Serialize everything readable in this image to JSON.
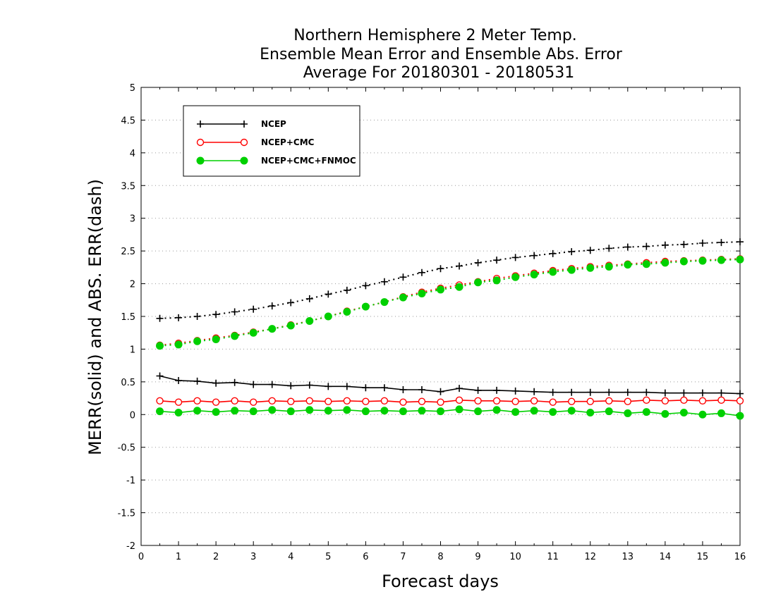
{
  "chart_data": {
    "type": "line",
    "title_lines": [
      "Northern Hemisphere 2 Meter Temp.",
      "Ensemble Mean Error and Ensemble Abs. Error",
      "Average For 20180301 - 20180531"
    ],
    "xlabel": "Forecast days",
    "ylabel": "MERR(solid) and ABS. ERR(dash)",
    "xlim": [
      0,
      16
    ],
    "ylim": [
      -2,
      5
    ],
    "xticks": [
      "0",
      "1",
      "2",
      "3",
      "4",
      "5",
      "6",
      "7",
      "8",
      "9",
      "10",
      "11",
      "12",
      "13",
      "14",
      "15",
      "16"
    ],
    "yticks": [
      "-2",
      "-1.5",
      "-1",
      "-0.5",
      "0",
      "0.5",
      "1",
      "1.5",
      "2",
      "2.5",
      "3",
      "3.5",
      "4",
      "4.5",
      "5"
    ],
    "grid": "horizontal-dotted",
    "legend_position": "top-left",
    "x": [
      0.5,
      1,
      1.5,
      2,
      2.5,
      3,
      3.5,
      4,
      4.5,
      5,
      5.5,
      6,
      6.5,
      7,
      7.5,
      8,
      8.5,
      9,
      9.5,
      10,
      10.5,
      11,
      11.5,
      12,
      12.5,
      13,
      13.5,
      14,
      14.5,
      15,
      15.5,
      16
    ],
    "series": [
      {
        "name": "NCEP",
        "color": "#000000",
        "marker": "plus",
        "abs_err": [
          1.47,
          1.48,
          1.5,
          1.53,
          1.57,
          1.61,
          1.66,
          1.71,
          1.77,
          1.84,
          1.9,
          1.97,
          2.03,
          2.1,
          2.17,
          2.23,
          2.27,
          2.32,
          2.36,
          2.4,
          2.43,
          2.46,
          2.49,
          2.51,
          2.54,
          2.56,
          2.57,
          2.59,
          2.6,
          2.62,
          2.63,
          2.64
        ],
        "mean_err": [
          0.59,
          0.52,
          0.51,
          0.48,
          0.49,
          0.46,
          0.46,
          0.44,
          0.45,
          0.43,
          0.43,
          0.41,
          0.41,
          0.38,
          0.38,
          0.35,
          0.4,
          0.37,
          0.37,
          0.36,
          0.35,
          0.34,
          0.34,
          0.34,
          0.34,
          0.34,
          0.34,
          0.33,
          0.33,
          0.33,
          0.33,
          0.32
        ]
      },
      {
        "name": "NCEP+CMC",
        "color": "#ff0000",
        "marker": "open-circle",
        "abs_err": [
          1.06,
          1.09,
          1.13,
          1.17,
          1.21,
          1.26,
          1.31,
          1.37,
          1.43,
          1.5,
          1.58,
          1.65,
          1.72,
          1.8,
          1.87,
          1.93,
          1.98,
          2.03,
          2.08,
          2.12,
          2.16,
          2.2,
          2.23,
          2.26,
          2.28,
          2.3,
          2.32,
          2.34,
          2.35,
          2.36,
          2.37,
          2.38
        ],
        "mean_err": [
          0.21,
          0.19,
          0.21,
          0.19,
          0.21,
          0.19,
          0.21,
          0.2,
          0.21,
          0.2,
          0.21,
          0.2,
          0.21,
          0.19,
          0.2,
          0.19,
          0.22,
          0.21,
          0.21,
          0.2,
          0.21,
          0.19,
          0.2,
          0.2,
          0.21,
          0.2,
          0.22,
          0.21,
          0.22,
          0.21,
          0.22,
          0.21
        ]
      },
      {
        "name": "NCEP+CMC+FNMOC",
        "color": "#00d000",
        "marker": "filled-circle",
        "abs_err": [
          1.05,
          1.07,
          1.12,
          1.15,
          1.2,
          1.25,
          1.31,
          1.36,
          1.43,
          1.5,
          1.57,
          1.65,
          1.72,
          1.79,
          1.85,
          1.91,
          1.95,
          2.02,
          2.05,
          2.1,
          2.14,
          2.18,
          2.21,
          2.24,
          2.26,
          2.29,
          2.3,
          2.32,
          2.34,
          2.35,
          2.36,
          2.37
        ],
        "mean_err": [
          0.05,
          0.03,
          0.06,
          0.04,
          0.06,
          0.05,
          0.07,
          0.05,
          0.07,
          0.06,
          0.07,
          0.05,
          0.06,
          0.05,
          0.06,
          0.05,
          0.08,
          0.05,
          0.07,
          0.04,
          0.06,
          0.04,
          0.06,
          0.03,
          0.05,
          0.02,
          0.04,
          0.01,
          0.03,
          0.0,
          0.02,
          -0.02
        ]
      }
    ]
  }
}
